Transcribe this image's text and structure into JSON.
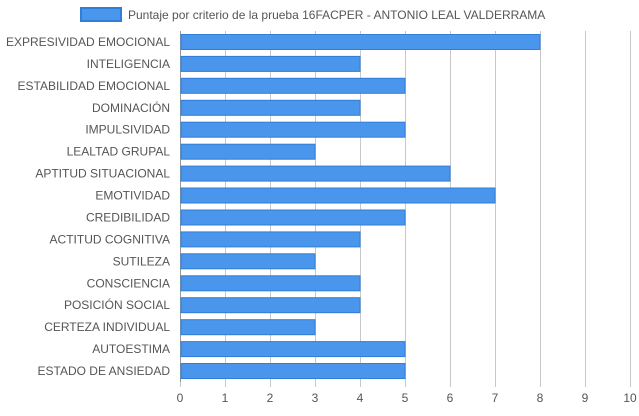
{
  "chart_data": {
    "type": "bar",
    "orientation": "horizontal",
    "legend_position": "top-center",
    "grid": true,
    "categories": [
      "EXPRESIVIDAD EMOCIONAL",
      "INTELIGENCIA",
      "ESTABILIDAD EMOCIONAL",
      "DOMINACIÓN",
      "IMPULSIVIDAD",
      "LEALTAD GRUPAL",
      "APTITUD SITUACIONAL",
      "EMOTIVIDAD",
      "CREDIBILIDAD",
      "ACTITUD COGNITIVA",
      "SUTILEZA",
      "CONSCIENCIA",
      "POSICIÓN SOCIAL",
      "CERTEZA INDIVIDUAL",
      "AUTOESTIMA",
      "ESTADO DE ANSIEDAD"
    ],
    "series": [
      {
        "name": "Puntaje por criterio de la prueba 16FACPER - ANTONIO LEAL VALDERRAMA",
        "values": [
          8,
          4,
          5,
          4,
          5,
          3,
          6,
          7,
          5,
          4,
          3,
          4,
          4,
          3,
          5,
          5
        ]
      }
    ],
    "xlim": [
      0,
      10
    ],
    "xticks": [
      "0",
      "1",
      "2",
      "3",
      "4",
      "5",
      "6",
      "7",
      "8",
      "9",
      "10"
    ],
    "colors": {
      "bar_fill": "#4a96ec",
      "bar_stroke": "#2f7ed8",
      "grid": "#c8c8c8",
      "text": "#555555"
    }
  }
}
